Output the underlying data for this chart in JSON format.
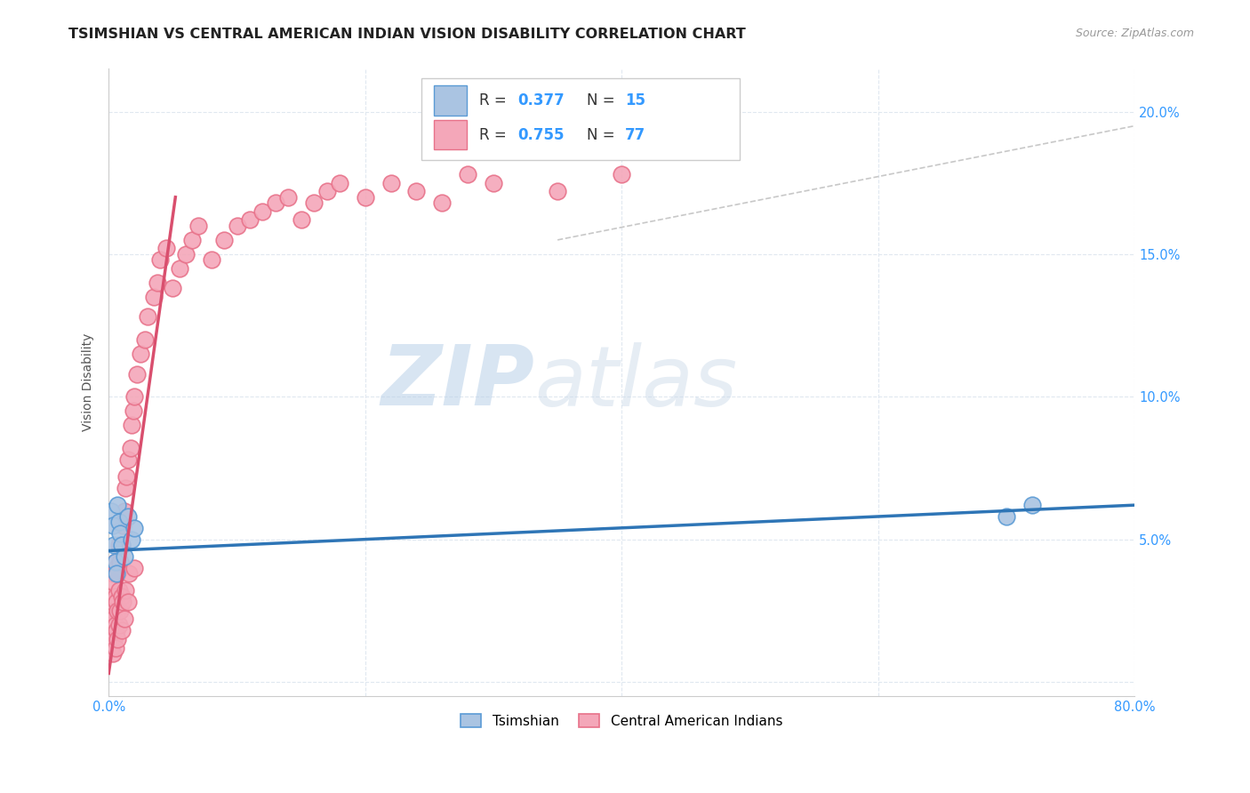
{
  "title": "TSIMSHIAN VS CENTRAL AMERICAN INDIAN VISION DISABILITY CORRELATION CHART",
  "source": "Source: ZipAtlas.com",
  "ylabel": "Vision Disability",
  "xlim": [
    0,
    0.8
  ],
  "ylim": [
    -0.005,
    0.215
  ],
  "xticks": [
    0.0,
    0.2,
    0.4,
    0.6,
    0.8
  ],
  "yticks": [
    0.0,
    0.05,
    0.1,
    0.15,
    0.2
  ],
  "ytick_labels": [
    "",
    "5.0%",
    "10.0%",
    "15.0%",
    "20.0%"
  ],
  "xtick_labels": [
    "0.0%",
    "",
    "",
    "",
    "80.0%"
  ],
  "background_color": "#ffffff",
  "watermark1": "ZIP",
  "watermark2": "atlas",
  "tsimshian_color": "#aac4e2",
  "tsimshian_edge_color": "#5b9bd5",
  "central_american_color": "#f4a7b9",
  "central_american_edge_color": "#e8728a",
  "tsimshian_line_color": "#2e75b6",
  "central_american_line_color": "#d94f6e",
  "diag_line_color": "#c8c8c8",
  "grid_color": "#e0e8f0",
  "title_fontsize": 11.5,
  "axis_label_fontsize": 10,
  "tick_fontsize": 10.5,
  "tsimshian_x": [
    0.002,
    0.003,
    0.004,
    0.005,
    0.006,
    0.007,
    0.008,
    0.009,
    0.01,
    0.012,
    0.015,
    0.018,
    0.02,
    0.7,
    0.72
  ],
  "tsimshian_y": [
    0.06,
    0.055,
    0.048,
    0.042,
    0.038,
    0.062,
    0.056,
    0.052,
    0.048,
    0.044,
    0.058,
    0.05,
    0.054,
    0.058,
    0.062
  ],
  "central_american_x": [
    0.001,
    0.001,
    0.002,
    0.002,
    0.002,
    0.003,
    0.003,
    0.003,
    0.003,
    0.004,
    0.004,
    0.004,
    0.005,
    0.005,
    0.005,
    0.005,
    0.006,
    0.006,
    0.006,
    0.007,
    0.007,
    0.007,
    0.008,
    0.008,
    0.008,
    0.009,
    0.009,
    0.01,
    0.01,
    0.01,
    0.011,
    0.011,
    0.012,
    0.012,
    0.013,
    0.013,
    0.014,
    0.015,
    0.015,
    0.016,
    0.017,
    0.018,
    0.019,
    0.02,
    0.02,
    0.022,
    0.025,
    0.028,
    0.03,
    0.035,
    0.038,
    0.04,
    0.045,
    0.05,
    0.055,
    0.06,
    0.065,
    0.07,
    0.08,
    0.09,
    0.1,
    0.11,
    0.12,
    0.13,
    0.14,
    0.15,
    0.16,
    0.17,
    0.18,
    0.2,
    0.22,
    0.24,
    0.26,
    0.28,
    0.3,
    0.35,
    0.4
  ],
  "central_american_y": [
    0.015,
    0.025,
    0.012,
    0.02,
    0.03,
    0.01,
    0.018,
    0.028,
    0.038,
    0.015,
    0.022,
    0.035,
    0.012,
    0.02,
    0.03,
    0.042,
    0.018,
    0.028,
    0.04,
    0.015,
    0.025,
    0.038,
    0.02,
    0.032,
    0.048,
    0.025,
    0.042,
    0.018,
    0.03,
    0.048,
    0.028,
    0.055,
    0.022,
    0.06,
    0.032,
    0.068,
    0.072,
    0.028,
    0.078,
    0.038,
    0.082,
    0.09,
    0.095,
    0.04,
    0.1,
    0.108,
    0.115,
    0.12,
    0.128,
    0.135,
    0.14,
    0.148,
    0.152,
    0.138,
    0.145,
    0.15,
    0.155,
    0.16,
    0.148,
    0.155,
    0.16,
    0.162,
    0.165,
    0.168,
    0.17,
    0.162,
    0.168,
    0.172,
    0.175,
    0.17,
    0.175,
    0.172,
    0.168,
    0.178,
    0.175,
    0.172,
    0.178
  ],
  "tsimshian_line_x": [
    0.0,
    0.8
  ],
  "tsimshian_line_y": [
    0.046,
    0.062
  ],
  "ca_line_x": [
    0.0,
    0.052
  ],
  "ca_line_y": [
    0.003,
    0.17
  ],
  "diag_line_x": [
    0.35,
    0.8
  ],
  "diag_line_y": [
    0.155,
    0.195
  ]
}
